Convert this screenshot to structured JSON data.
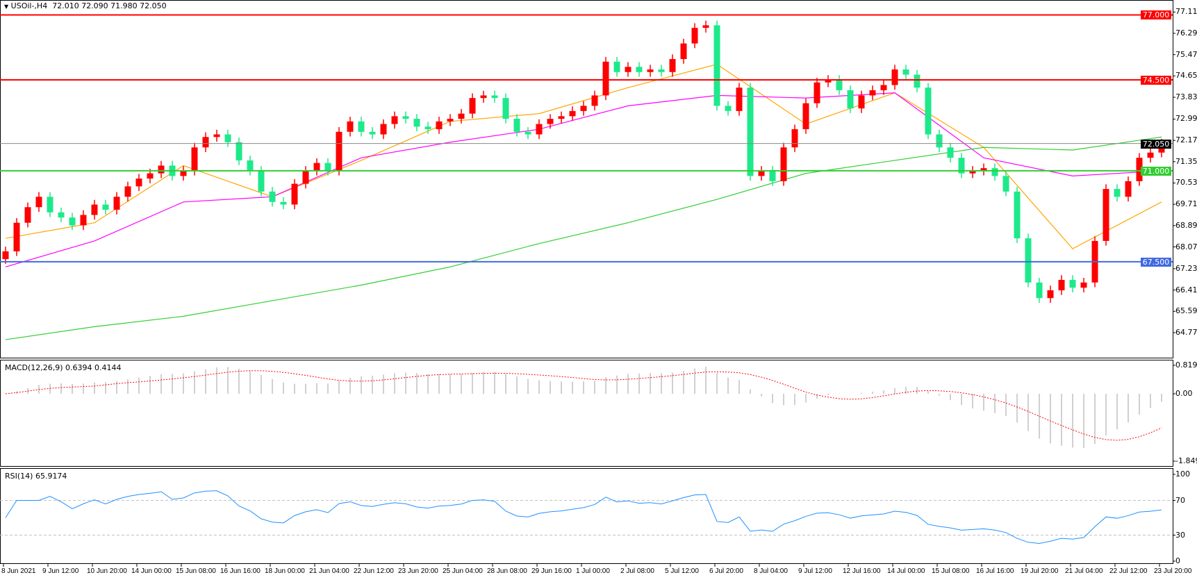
{
  "header": {
    "symbol": "USOil-,H4",
    "ohlc": "72.010 72.090 71.980 72.050",
    "menu_icon": "triangle-down-icon"
  },
  "macd_label": "MACD(12,26,9) 0.6394 0.4144",
  "rsi_label": "RSI(14) 65.9174",
  "colors": {
    "bull": "#ff0000",
    "bear": "#1de98b",
    "ma_fast": "#ffa500",
    "ma_mid": "#ff00ff",
    "ma_slow": "#32cd32",
    "res": "#ff0000",
    "sup": "#32cd32",
    "blue": "#4169e1",
    "rsi": "#1e90ff",
    "macd_hist": "#c0c0c0",
    "macd_signal": "#ff0000"
  },
  "chart_data": {
    "type": "candlestick",
    "timeframe": "H4",
    "ylim": [
      64.77,
      77.11
    ],
    "y_ticks": [
      "77.110",
      "76.290",
      "75.470",
      "74.650",
      "73.830",
      "72.990",
      "72.170",
      "71.350",
      "70.530",
      "69.710",
      "68.890",
      "68.070",
      "67.230",
      "66.410",
      "65.590",
      "64.770"
    ],
    "x_ticks": [
      "8 Jun 2021",
      "9 Jun 12:00",
      "10 Jun 20:00",
      "14 Jun 00:00",
      "15 Jun 08:00",
      "16 Jun 16:00",
      "18 Jun 00:00",
      "21 Jun 04:00",
      "22 Jun 12:00",
      "23 Jun 20:00",
      "25 Jun 04:00",
      "28 Jun 08:00",
      "29 Jun 16:00",
      "1 Jul 00:00",
      "2 Jul 08:00",
      "5 Jul 12:00",
      "6 Jul 20:00",
      "8 Jul 04:00",
      "9 Jul 12:00",
      "12 Jul 16:00",
      "14 Jul 00:00",
      "15 Jul 08:00",
      "16 Jul 16:00",
      "19 Jul 20:00",
      "21 Jul 04:00",
      "22 Jul 12:00",
      "23 Jul 20:00"
    ],
    "closes": [
      67.9,
      69.0,
      69.6,
      70.0,
      69.4,
      69.2,
      68.9,
      69.3,
      69.7,
      69.5,
      70.0,
      70.4,
      70.7,
      70.9,
      71.2,
      70.8,
      71.0,
      71.9,
      72.3,
      72.4,
      72.1,
      71.4,
      71.0,
      70.2,
      69.8,
      69.7,
      70.5,
      71.0,
      71.3,
      71.0,
      72.5,
      72.9,
      72.5,
      72.4,
      72.8,
      73.1,
      73.0,
      72.7,
      72.6,
      72.9,
      73.0,
      73.2,
      73.8,
      73.9,
      73.8,
      73.0,
      72.5,
      72.4,
      72.8,
      73.0,
      73.1,
      73.3,
      73.5,
      73.9,
      75.2,
      74.8,
      75.0,
      74.8,
      74.9,
      74.8,
      75.3,
      75.9,
      76.5,
      76.6,
      73.5,
      73.3,
      74.2,
      70.8,
      71.0,
      70.6,
      71.9,
      72.6,
      73.6,
      74.4,
      74.5,
      74.1,
      73.4,
      73.9,
      74.1,
      74.3,
      74.9,
      74.7,
      74.2,
      72.4,
      71.9,
      71.5,
      70.9,
      71.0,
      71.1,
      70.8,
      70.2,
      68.4,
      66.7,
      66.1,
      66.4,
      66.8,
      66.5,
      66.7,
      68.3,
      70.3,
      70.0,
      70.6,
      71.5,
      71.7,
      72.05
    ],
    "moving_averages": [
      {
        "color_key": "ma_fast",
        "samples": [
          68.4,
          69.0,
          71.2,
          70.0,
          71.4,
          72.9,
          73.2,
          74.2,
          75.1,
          72.8,
          74.0,
          71.9,
          68.0,
          69.8
        ]
      },
      {
        "color_key": "ma_mid",
        "samples": [
          67.3,
          68.3,
          69.8,
          70.0,
          71.5,
          72.1,
          72.6,
          73.5,
          73.9,
          73.8,
          74.0,
          71.5,
          70.8,
          71.0
        ]
      },
      {
        "color_key": "ma_slow",
        "samples": [
          64.5,
          65.0,
          65.4,
          66.0,
          66.6,
          67.3,
          68.2,
          69.0,
          69.9,
          70.9,
          71.4,
          71.9,
          71.8,
          72.3
        ]
      }
    ],
    "levels": [
      {
        "value": 77.0,
        "label": "77.000",
        "color_key": "res"
      },
      {
        "value": 74.5,
        "label": "74.500",
        "color_key": "res"
      },
      {
        "value": 72.05,
        "label": "72.050",
        "color_key": "current"
      },
      {
        "value": 71.0,
        "label": "71.000",
        "color_key": "sup"
      },
      {
        "value": 67.5,
        "label": "67.500",
        "color_key": "blue"
      }
    ],
    "macd": {
      "ylim": [
        -1.8495,
        0.8198
      ],
      "ticks": [
        "0.8198",
        "0.00",
        "-1.8495"
      ],
      "value": 0.6394,
      "signal": 0.4144
    },
    "rsi": {
      "ylim": [
        0,
        100
      ],
      "ticks": [
        "100",
        "70",
        "30",
        "0"
      ],
      "levels": [
        70,
        30
      ],
      "value": 65.9174
    }
  }
}
